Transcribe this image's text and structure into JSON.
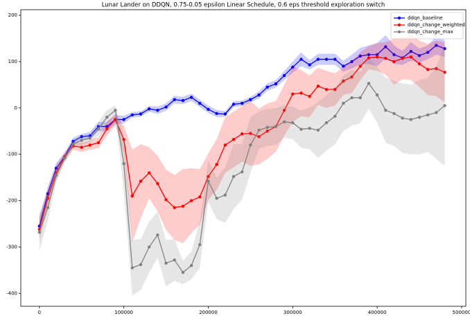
{
  "chart_data": {
    "type": "line",
    "title": "Lunar Lander on DDQN, 0.75-0.05 epsilon Linear Schedule, 0.6 eps threshold exploration switch",
    "x": [
      0,
      10000,
      20000,
      30000,
      40000,
      50000,
      60000,
      70000,
      80000,
      90000,
      100000,
      110000,
      120000,
      130000,
      140000,
      150000,
      160000,
      170000,
      180000,
      190000,
      200000,
      210000,
      220000,
      230000,
      240000,
      250000,
      260000,
      270000,
      280000,
      290000,
      300000,
      310000,
      320000,
      330000,
      340000,
      350000,
      360000,
      370000,
      380000,
      390000,
      400000,
      410000,
      420000,
      430000,
      440000,
      450000,
      460000,
      470000,
      480000
    ],
    "series": [
      {
        "name": "ddqn_baseline",
        "color": "#0000ff",
        "values": [
          -255,
          -185,
          -130,
          -105,
          -72,
          -62,
          -60,
          -40,
          -40,
          -25,
          -25,
          -15,
          -13,
          -2,
          -5,
          2,
          18,
          16,
          23,
          10,
          -3,
          -12,
          -13,
          8,
          10,
          18,
          28,
          45,
          52,
          70,
          88,
          105,
          93,
          105,
          105,
          105,
          90,
          100,
          112,
          115,
          115,
          132,
          115,
          108,
          122,
          113,
          120,
          135,
          128
        ],
        "band": [
          20,
          15,
          12,
          8,
          8,
          6,
          8,
          10,
          10,
          10,
          8,
          6,
          6,
          6,
          8,
          8,
          8,
          8,
          8,
          8,
          8,
          8,
          6,
          6,
          6,
          6,
          8,
          8,
          8,
          10,
          12,
          15,
          10,
          12,
          12,
          12,
          12,
          15,
          18,
          20,
          25,
          25,
          20,
          15,
          20,
          15,
          15,
          20,
          18
        ]
      },
      {
        "name": "ddqn_change_weighted",
        "color": "#ff0000",
        "values": [
          -262,
          -195,
          -140,
          -105,
          -82,
          -85,
          -80,
          -75,
          -45,
          -25,
          -68,
          -190,
          -158,
          -140,
          -163,
          -198,
          -215,
          -212,
          -200,
          -192,
          -148,
          -122,
          -80,
          -68,
          -56,
          -55,
          -62,
          -50,
          -40,
          -5,
          30,
          32,
          25,
          47,
          40,
          40,
          58,
          67,
          90,
          108,
          110,
          107,
          100,
          107,
          110,
          95,
          83,
          85,
          77
        ],
        "band": [
          25,
          20,
          15,
          10,
          8,
          10,
          10,
          12,
          15,
          12,
          30,
          100,
          80,
          55,
          60,
          65,
          70,
          80,
          70,
          60,
          50,
          55,
          60,
          60,
          60,
          70,
          60,
          60,
          55,
          55,
          60,
          50,
          45,
          40,
          40,
          35,
          30,
          35,
          30,
          25,
          30,
          35,
          50,
          45,
          50,
          50,
          55,
          60,
          65
        ]
      },
      {
        "name": "ddqn_change_max",
        "color": "#808080",
        "values": [
          -268,
          -215,
          -145,
          -108,
          -78,
          -70,
          -65,
          -45,
          -20,
          -5,
          -120,
          -345,
          -338,
          -300,
          -274,
          -335,
          -328,
          -355,
          -340,
          -295,
          -158,
          -195,
          -188,
          -148,
          -138,
          -80,
          -48,
          -42,
          -40,
          -30,
          -32,
          -46,
          -44,
          -48,
          -32,
          -18,
          10,
          22,
          22,
          53,
          28,
          -5,
          -12,
          -22,
          -25,
          -20,
          -15,
          -10,
          5
        ],
        "band": [
          40,
          30,
          15,
          10,
          10,
          10,
          10,
          15,
          15,
          10,
          60,
          60,
          55,
          55,
          50,
          50,
          45,
          25,
          30,
          50,
          45,
          45,
          60,
          70,
          60,
          60,
          40,
          40,
          40,
          35,
          35,
          40,
          45,
          60,
          60,
          60,
          60,
          60,
          55,
          55,
          60,
          70,
          70,
          75,
          75,
          80,
          80,
          100,
          130
        ]
      }
    ],
    "xlim": [
      -22000,
      505000
    ],
    "xticks": [
      0,
      100000,
      200000,
      300000,
      400000,
      500000
    ],
    "ylim": [
      -428,
      212
    ],
    "yticks": [
      -400,
      -300,
      -200,
      -100,
      0,
      100,
      200
    ],
    "legend": "upper right"
  }
}
